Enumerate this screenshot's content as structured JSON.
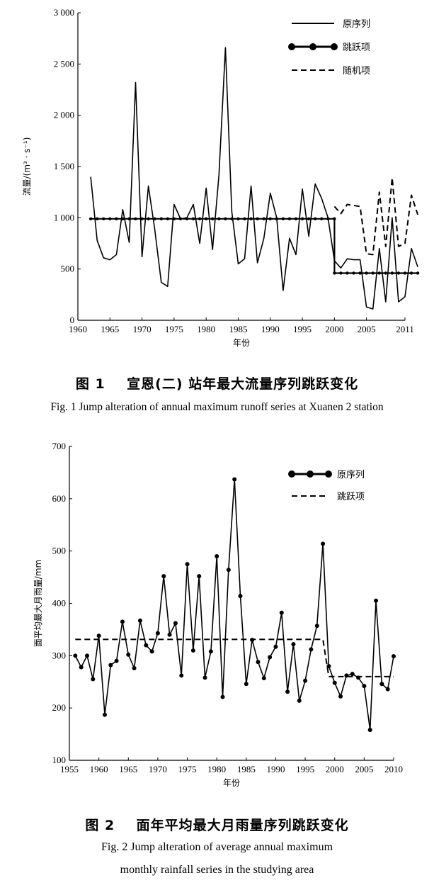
{
  "chart_data": [
    {
      "type": "line",
      "fig_label": "图 1",
      "title": "宣恩(二) 站年最大流量序列跳跃变化",
      "title_en": "Fig. 1   Jump alteration of annual maximum runoff series at Xuanen 2 station",
      "xlabel": "年份",
      "ylabel": "流量/(m³ · s⁻¹)",
      "xlim": [
        1960,
        2011
      ],
      "ylim": [
        0,
        3000
      ],
      "x_ticks": [
        1960,
        1965,
        1970,
        1975,
        1980,
        1985,
        1990,
        1995,
        2000,
        2005,
        2011
      ],
      "y_ticks": [
        0,
        500,
        1000,
        1500,
        2000,
        2500,
        3000
      ],
      "y_tick_labels": [
        "0",
        "500",
        "1 000",
        "1 500",
        "2 000",
        "2 500",
        "3 000"
      ],
      "legend_position": "top-right",
      "series": [
        {
          "name": "原序列",
          "style": "solid",
          "x": [
            1962,
            1963,
            1964,
            1965,
            1966,
            1967,
            1968,
            1969,
            1970,
            1971,
            1972,
            1973,
            1974,
            1975,
            1976,
            1977,
            1978,
            1979,
            1980,
            1981,
            1982,
            1983,
            1984,
            1985,
            1986,
            1987,
            1988,
            1989,
            1990,
            1991,
            1992,
            1993,
            1994,
            1995,
            1996,
            1997,
            1998,
            1999,
            2000,
            2001,
            2002,
            2003,
            2004,
            2005,
            2006,
            2007,
            2008,
            2009,
            2010,
            2011,
            2012,
            2013
          ],
          "y": [
            1400,
            780,
            610,
            590,
            640,
            1080,
            760,
            2320,
            620,
            1310,
            880,
            370,
            330,
            1130,
            990,
            1000,
            1130,
            750,
            1290,
            690,
            1420,
            2660,
            1060,
            550,
            600,
            1310,
            560,
            800,
            1240,
            1000,
            290,
            800,
            640,
            1280,
            820,
            1330,
            1190,
            1000,
            580,
            510,
            600,
            590,
            590,
            130,
            110,
            700,
            180,
            1000,
            180,
            230,
            700,
            520
          ]
        },
        {
          "name": "跳跃项",
          "style": "solid-markers",
          "x": [
            1962,
            1963,
            1964,
            1965,
            1966,
            1967,
            1968,
            1969,
            1970,
            1971,
            1972,
            1973,
            1974,
            1975,
            1976,
            1977,
            1978,
            1979,
            1980,
            1981,
            1982,
            1983,
            1984,
            1985,
            1986,
            1987,
            1988,
            1989,
            1990,
            1991,
            1992,
            1993,
            1994,
            1995,
            1996,
            1997,
            1998,
            1999,
            2000,
            2000,
            2001,
            2002,
            2003,
            2004,
            2005,
            2006,
            2007,
            2008,
            2009,
            2010,
            2011,
            2012,
            2013
          ],
          "y": [
            990,
            990,
            990,
            990,
            990,
            990,
            990,
            990,
            990,
            990,
            990,
            990,
            990,
            990,
            990,
            990,
            990,
            990,
            990,
            990,
            990,
            990,
            990,
            990,
            990,
            990,
            990,
            990,
            990,
            990,
            990,
            990,
            990,
            990,
            990,
            990,
            990,
            990,
            990,
            460,
            460,
            460,
            460,
            460,
            460,
            460,
            460,
            460,
            460,
            460,
            460,
            460,
            460
          ]
        },
        {
          "name": "随机项",
          "style": "dashed",
          "x": [
            2000,
            2001,
            2002,
            2003,
            2004,
            2005,
            2006,
            2007,
            2008,
            2009,
            2010,
            2011,
            2012,
            2013
          ],
          "y": [
            1110,
            1040,
            1130,
            1120,
            1110,
            650,
            640,
            1250,
            720,
            1390,
            720,
            750,
            1220,
            1030
          ]
        }
      ]
    },
    {
      "type": "line",
      "fig_label": "图 2",
      "title": "面年平均最大月雨量序列跳跃变化",
      "title_en_1": "Fig. 2   Jump alteration of average annual maximum",
      "title_en_2": "monthly rainfall series in the studying area",
      "xlabel": "年份",
      "ylabel": "面平均最大月雨量/mm",
      "xlim": [
        1955,
        2010
      ],
      "ylim": [
        100,
        700
      ],
      "x_ticks": [
        1955,
        1960,
        1965,
        1970,
        1975,
        1980,
        1985,
        1990,
        1995,
        2000,
        2005,
        2010
      ],
      "y_ticks": [
        100,
        200,
        300,
        400,
        500,
        600,
        700
      ],
      "y_tick_labels": [
        "100",
        "200",
        "300",
        "400",
        "500",
        "600",
        "700"
      ],
      "legend_position": "top-right",
      "series": [
        {
          "name": "原序列",
          "style": "solid-markers",
          "x": [
            1956,
            1957,
            1958,
            1959,
            1960,
            1961,
            1962,
            1963,
            1964,
            1965,
            1966,
            1967,
            1968,
            1969,
            1970,
            1971,
            1972,
            1973,
            1974,
            1975,
            1976,
            1977,
            1978,
            1979,
            1980,
            1981,
            1982,
            1983,
            1984,
            1985,
            1986,
            1987,
            1988,
            1989,
            1990,
            1991,
            1992,
            1993,
            1994,
            1995,
            1996,
            1997,
            1998,
            1999,
            2000,
            2001,
            2002,
            2003,
            2004,
            2005,
            2006,
            2007,
            2008,
            2009,
            2010
          ],
          "y": [
            300,
            278,
            300,
            255,
            338,
            187,
            282,
            290,
            365,
            302,
            276,
            367,
            320,
            308,
            343,
            452,
            340,
            362,
            262,
            475,
            310,
            452,
            258,
            308,
            490,
            221,
            464,
            637,
            414,
            246,
            330,
            288,
            257,
            297,
            317,
            382,
            231,
            322,
            214,
            252,
            312,
            357,
            514,
            280,
            248,
            222,
            262,
            265,
            258,
            242,
            158,
            405,
            246,
            236,
            299
          ]
        },
        {
          "name": "跳跃项",
          "style": "dashed",
          "x": [
            1956,
            1998,
            1999,
            2010
          ],
          "y": [
            331,
            331,
            260,
            260
          ]
        }
      ]
    }
  ]
}
